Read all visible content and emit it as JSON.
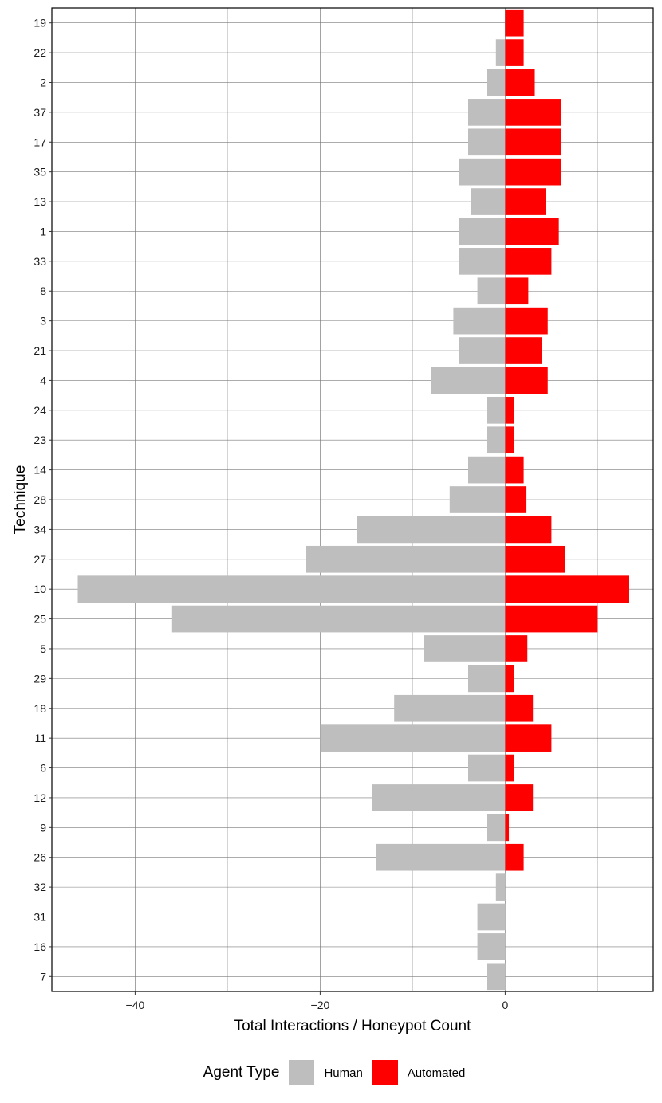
{
  "chart_data": {
    "type": "bar",
    "orientation": "horizontal",
    "xlabel": "Total Interactions / Honeypot Count",
    "ylabel": "Technique",
    "xlim": [
      -49,
      16
    ],
    "xticks": [
      -40,
      -20,
      0
    ],
    "xtick_labels": [
      "−40",
      "−20",
      "0"
    ],
    "grid": true,
    "legend_position": "bottom",
    "legend_title": "Agent Type",
    "categories": [
      "19",
      "22",
      "2",
      "37",
      "17",
      "35",
      "13",
      "1",
      "33",
      "8",
      "3",
      "21",
      "4",
      "24",
      "23",
      "14",
      "28",
      "34",
      "27",
      "10",
      "25",
      "5",
      "29",
      "18",
      "11",
      "6",
      "12",
      "9",
      "26",
      "32",
      "31",
      "16",
      "7"
    ],
    "series": [
      {
        "name": "Human",
        "color": "#bebebe",
        "values": [
          0,
          -1,
          -2,
          -4,
          -4,
          -5,
          -3.7,
          -5,
          -5,
          -3,
          -5.6,
          -5,
          -8,
          -2,
          -2,
          -4,
          -6,
          -16,
          -21.5,
          -46.2,
          -36,
          -8.8,
          -4,
          -12,
          -20,
          -4,
          -14.4,
          -2,
          -14,
          -1,
          -3,
          -3,
          -2
        ]
      },
      {
        "name": "Automated",
        "color": "#ff0000",
        "values": [
          2,
          2,
          3.2,
          6,
          6,
          6,
          4.4,
          5.8,
          5,
          2.5,
          4.6,
          4,
          4.6,
          1,
          1,
          2,
          2.3,
          5,
          6.5,
          13.4,
          10,
          2.4,
          1,
          3,
          5,
          1,
          3,
          0.4,
          2,
          0,
          0,
          0,
          0
        ]
      }
    ]
  }
}
